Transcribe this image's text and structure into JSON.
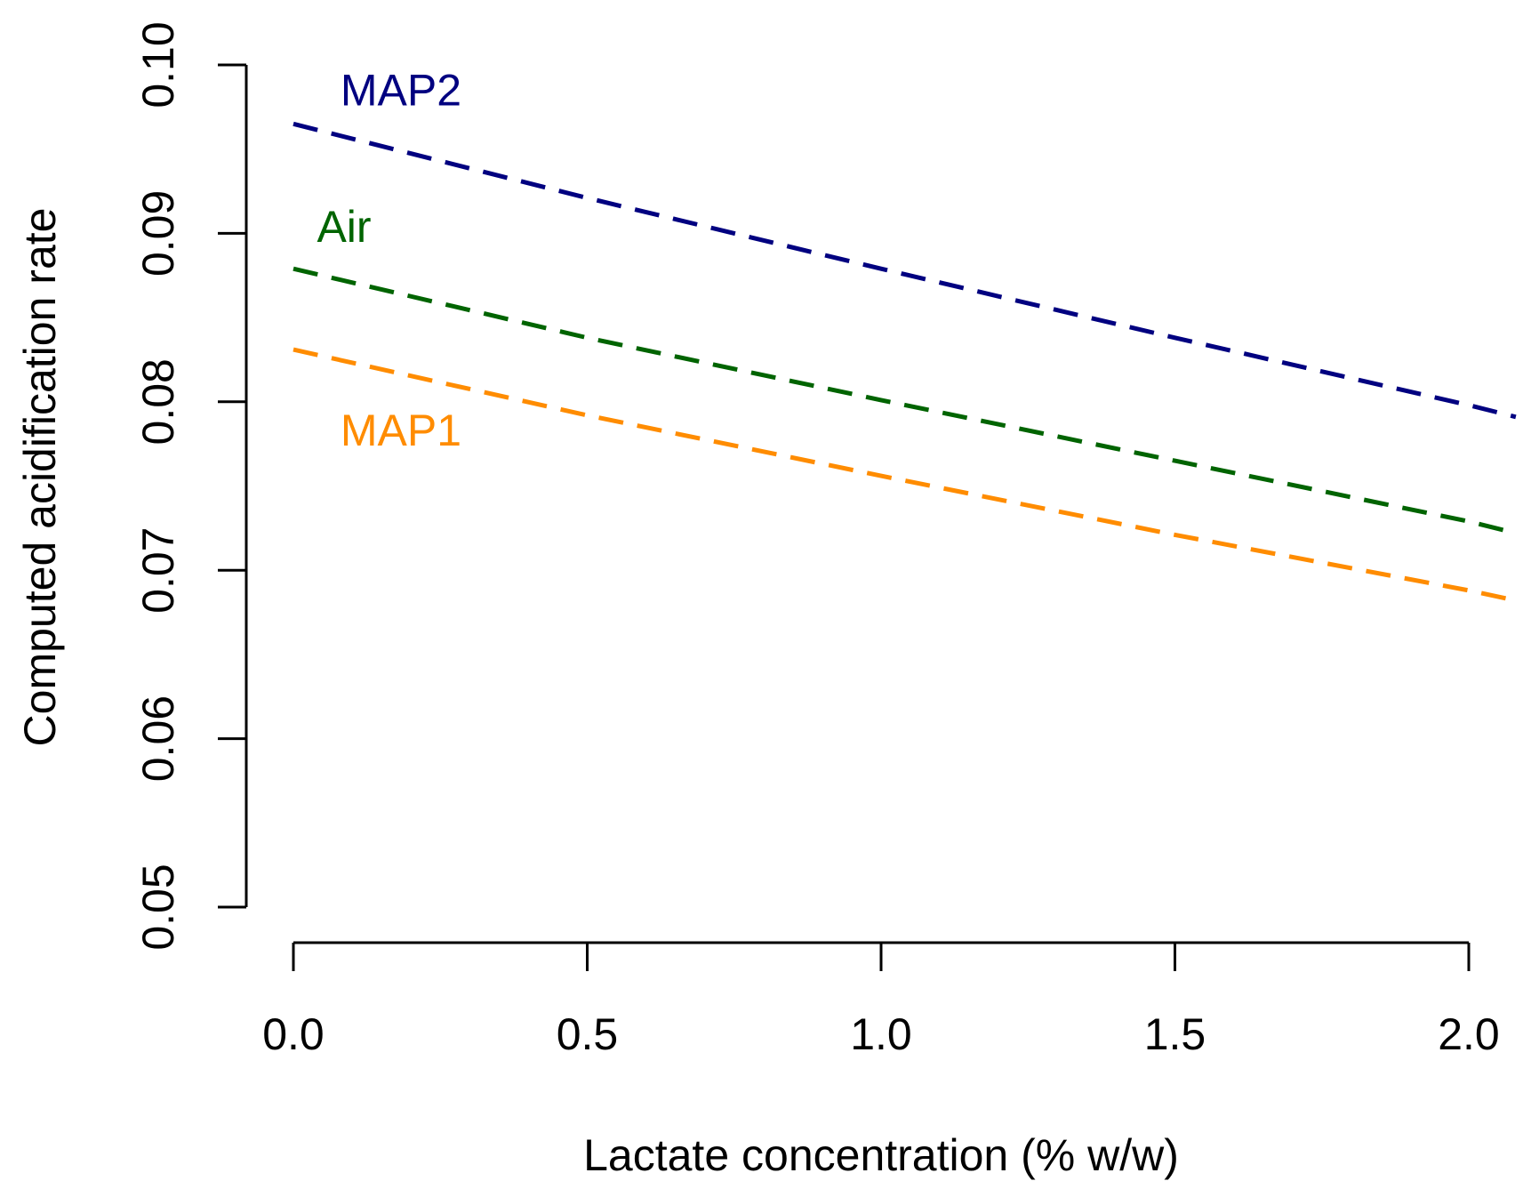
{
  "chart_data": {
    "type": "line",
    "title": "",
    "xlabel": "Lactate concentration (% w/w)",
    "ylabel": "Computed acidification rate",
    "xlim": [
      0.0,
      2.08
    ],
    "ylim": [
      0.05,
      0.1
    ],
    "x_ticks": [
      0.0,
      0.5,
      1.0,
      1.5,
      2.0
    ],
    "x_tick_labels": [
      "0.0",
      "0.5",
      "1.0",
      "1.5",
      "2.0"
    ],
    "y_ticks": [
      0.05,
      0.06,
      0.07,
      0.08,
      0.09,
      0.1
    ],
    "y_tick_labels": [
      "0.05",
      "0.06",
      "0.07",
      "0.08",
      "0.09",
      "0.10"
    ],
    "grid": false,
    "legend": "inline labels",
    "series": [
      {
        "name": "MAP2",
        "color": "#000080",
        "line_style": "dashed",
        "x": [
          0.0,
          0.5,
          1.0,
          1.5,
          2.0,
          2.08
        ],
        "values": [
          0.0965,
          0.0921,
          0.0879,
          0.0838,
          0.0798,
          0.0791
        ]
      },
      {
        "name": "Air",
        "color": "#006400",
        "line_style": "dashed",
        "x": [
          0.0,
          0.5,
          1.0,
          1.5,
          2.0,
          2.08
        ],
        "values": [
          0.0879,
          0.0838,
          0.0801,
          0.0765,
          0.0729,
          0.0722
        ]
      },
      {
        "name": "MAP1",
        "color": "#FF8C00",
        "line_style": "dashed",
        "x": [
          0.0,
          0.5,
          1.0,
          1.5,
          2.0,
          2.08
        ],
        "values": [
          0.0831,
          0.0792,
          0.0756,
          0.0721,
          0.0688,
          0.0682
        ]
      }
    ],
    "annotations": [
      {
        "text": "MAP2",
        "series": "MAP2",
        "x": 0.08,
        "y": 0.0976
      },
      {
        "text": "Air",
        "series": "Air",
        "x": 0.04,
        "y": 0.0895
      },
      {
        "text": "MAP1",
        "series": "MAP1",
        "x": 0.08,
        "y": 0.0774
      }
    ]
  }
}
